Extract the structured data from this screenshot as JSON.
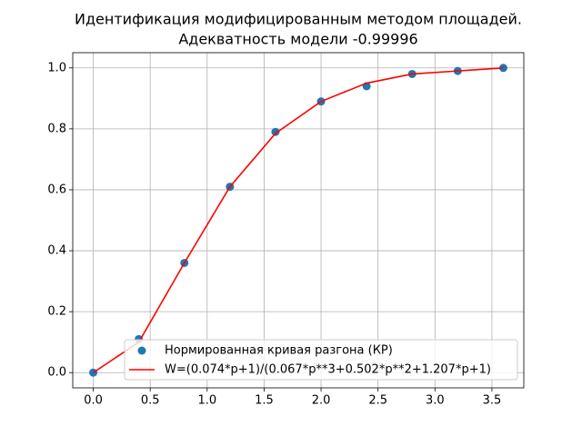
{
  "chart_data": {
    "type": "line",
    "title": "Идентификация модифицированным методом площадей.",
    "subtitle": "Адекватность модели -0.99996",
    "x": [
      0,
      0.4,
      0.8,
      1.2,
      1.6,
      2.0,
      2.4,
      2.8,
      3.2,
      3.6
    ],
    "series": [
      {
        "name": "Нормированная кривая разгона (КР)",
        "color": "#1f77b4",
        "marker": "o",
        "values": [
          0,
          0.11,
          0.36,
          0.61,
          0.79,
          0.89,
          0.94,
          0.98,
          0.99,
          1.0
        ]
      },
      {
        "name": "W=(0.074*p+1)/(0.067*p**3+0.502*p**2+1.207*p+1)",
        "color": "#ff0000",
        "marker": "line",
        "values": [
          0,
          0.1,
          0.36,
          0.61,
          0.785,
          0.89,
          0.95,
          0.98,
          0.99,
          1.0
        ]
      }
    ],
    "xlim": [
      -0.18,
      3.78
    ],
    "ylim": [
      -0.05,
      1.05
    ],
    "xticks": [
      {
        "value": 0,
        "label": "0.0"
      },
      0.5,
      {
        "value": 1,
        "label": "1.0"
      },
      1.5,
      {
        "value": 2,
        "label": "2.0"
      },
      2.5,
      {
        "value": 3,
        "label": "3.0"
      },
      3.5
    ],
    "yticks": [
      {
        "value": 0,
        "label": "0.0"
      },
      0.2,
      0.4,
      0.6,
      0.8,
      {
        "value": 1,
        "label": "1.0"
      }
    ],
    "grid": true,
    "legend": "lower right"
  }
}
